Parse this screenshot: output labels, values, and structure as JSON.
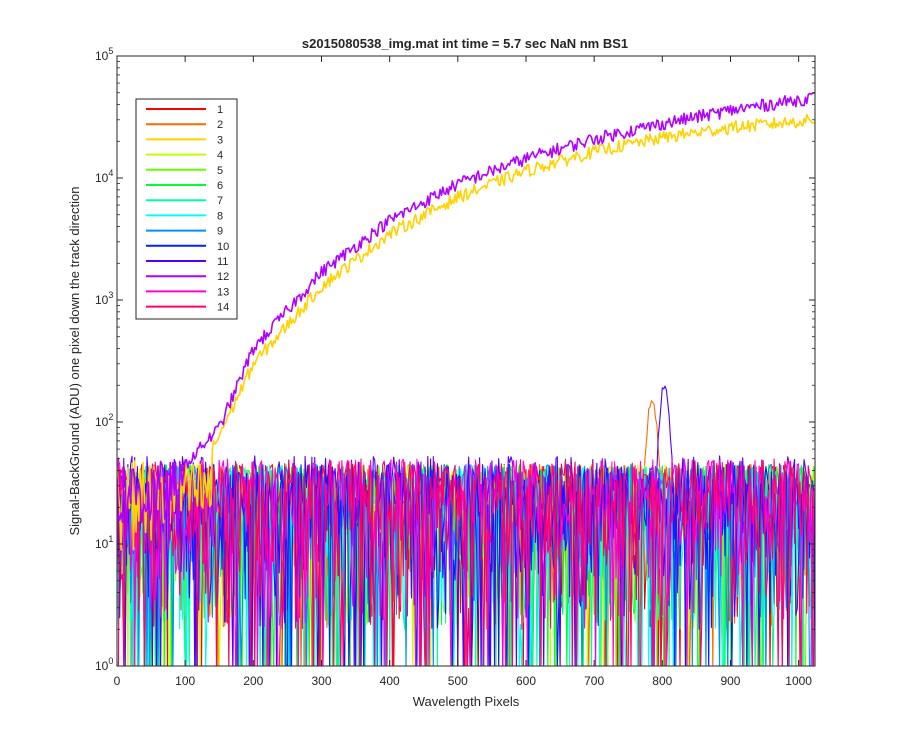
{
  "chart_data": {
    "type": "line",
    "title": "s2015080538_img.mat int time = 5.7 sec  NaN nm BS1",
    "xlabel": "Wavelength Pixels",
    "ylabel": "Signal-BackGround (ADU) one pixel down the track direction",
    "xlim": [
      0,
      1024
    ],
    "ylim": [
      1,
      100000
    ],
    "yscale": "log",
    "grid": false,
    "legend_position": "top-left",
    "x_ticks": [
      0,
      100,
      200,
      300,
      400,
      500,
      600,
      700,
      800,
      900,
      1000
    ],
    "y_ticks": [
      {
        "base": "10",
        "exp": "0"
      },
      {
        "base": "10",
        "exp": "1"
      },
      {
        "base": "10",
        "exp": "2"
      },
      {
        "base": "10",
        "exp": "3"
      },
      {
        "base": "10",
        "exp": "4"
      },
      {
        "base": "10",
        "exp": "5"
      }
    ],
    "series": [
      {
        "name": "1",
        "color": "#ff0000",
        "kind": "noise",
        "level": 25
      },
      {
        "name": "2",
        "color": "#ff6a00",
        "kind": "noise",
        "level": 25,
        "peak": {
          "x": 785,
          "value": 160,
          "width": 10
        }
      },
      {
        "name": "3",
        "color": "#ffd200",
        "kind": "rising",
        "start_x": 140,
        "points": [
          [
            140,
            60
          ],
          [
            200,
            300
          ],
          [
            300,
            1300
          ],
          [
            400,
            3500
          ],
          [
            500,
            7000
          ],
          [
            600,
            11500
          ],
          [
            700,
            16500
          ],
          [
            800,
            21500
          ],
          [
            900,
            26000
          ],
          [
            1024,
            30000
          ]
        ]
      },
      {
        "name": "4",
        "color": "#c2ff00",
        "kind": "noise",
        "level": 25
      },
      {
        "name": "5",
        "color": "#64ff00",
        "kind": "noise",
        "level": 25
      },
      {
        "name": "6",
        "color": "#00ff30",
        "kind": "noise",
        "level": 25
      },
      {
        "name": "7",
        "color": "#00ffa0",
        "kind": "noise",
        "level": 25
      },
      {
        "name": "8",
        "color": "#00fff5",
        "kind": "noise",
        "level": 25
      },
      {
        "name": "9",
        "color": "#0090ff",
        "kind": "noise",
        "level": 25
      },
      {
        "name": "10",
        "color": "#0020ff",
        "kind": "noise",
        "level": 25
      },
      {
        "name": "11",
        "color": "#5000ff",
        "kind": "noise",
        "level": 30,
        "peak": {
          "x": 803,
          "value": 205,
          "width": 9
        }
      },
      {
        "name": "12",
        "color": "#b000ff",
        "kind": "rising",
        "start_x": 100,
        "points": [
          [
            100,
            45
          ],
          [
            150,
            90
          ],
          [
            200,
            400
          ],
          [
            300,
            1700
          ],
          [
            400,
            4500
          ],
          [
            500,
            9000
          ],
          [
            600,
            14500
          ],
          [
            700,
            21000
          ],
          [
            800,
            28000
          ],
          [
            900,
            36000
          ],
          [
            1024,
            46000
          ]
        ]
      },
      {
        "name": "13",
        "color": "#ff00dc",
        "kind": "noise",
        "level": 28
      },
      {
        "name": "14",
        "color": "#ff0064",
        "kind": "noise",
        "level": 28
      }
    ]
  }
}
